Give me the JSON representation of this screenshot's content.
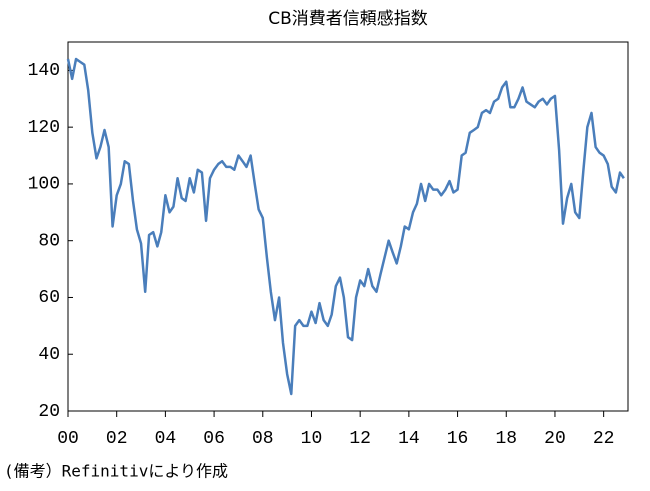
{
  "chart_data": {
    "type": "line",
    "title": "CB消費者信頼感指数",
    "note": "(備考）Refinitivにより作成",
    "color": "#4a7ebb",
    "x": [
      2000,
      2000.17,
      2000.33,
      2000.5,
      2000.67,
      2000.83,
      2001,
      2001.17,
      2001.33,
      2001.5,
      2001.67,
      2001.83,
      2002,
      2002.17,
      2002.33,
      2002.5,
      2002.67,
      2002.83,
      2003,
      2003.17,
      2003.33,
      2003.5,
      2003.67,
      2003.83,
      2004,
      2004.17,
      2004.33,
      2004.5,
      2004.67,
      2004.83,
      2005,
      2005.17,
      2005.33,
      2005.5,
      2005.67,
      2005.83,
      2006,
      2006.17,
      2006.33,
      2006.5,
      2006.67,
      2006.83,
      2007,
      2007.17,
      2007.33,
      2007.5,
      2007.67,
      2007.83,
      2008,
      2008.17,
      2008.33,
      2008.5,
      2008.67,
      2008.83,
      2009,
      2009.17,
      2009.33,
      2009.5,
      2009.67,
      2009.83,
      2010,
      2010.17,
      2010.33,
      2010.5,
      2010.67,
      2010.83,
      2011,
      2011.17,
      2011.33,
      2011.5,
      2011.67,
      2011.83,
      2012,
      2012.17,
      2012.33,
      2012.5,
      2012.67,
      2012.83,
      2013,
      2013.17,
      2013.33,
      2013.5,
      2013.67,
      2013.83,
      2014,
      2014.17,
      2014.33,
      2014.5,
      2014.67,
      2014.83,
      2015,
      2015.17,
      2015.33,
      2015.5,
      2015.67,
      2015.83,
      2016,
      2016.17,
      2016.33,
      2016.5,
      2016.67,
      2016.83,
      2017,
      2017.17,
      2017.33,
      2017.5,
      2017.67,
      2017.83,
      2018,
      2018.17,
      2018.33,
      2018.5,
      2018.67,
      2018.83,
      2019,
      2019.17,
      2019.33,
      2019.5,
      2019.67,
      2019.83,
      2020,
      2020.17,
      2020.33,
      2020.5,
      2020.67,
      2020.83,
      2021,
      2021.17,
      2021.33,
      2021.5,
      2021.67,
      2021.83,
      2022,
      2022.17,
      2022.33,
      2022.5,
      2022.67,
      2022.83
    ],
    "values": [
      144,
      137,
      144,
      143,
      142,
      133,
      118,
      109,
      113,
      119,
      113,
      85,
      96,
      100,
      108,
      107,
      94,
      84,
      79,
      62,
      82,
      83,
      78,
      83,
      96,
      90,
      92,
      102,
      95,
      94,
      102,
      97,
      105,
      104,
      87,
      102,
      105,
      107,
      108,
      106,
      106,
      105,
      110,
      108,
      106,
      110,
      100,
      91,
      88,
      74,
      62,
      52,
      60,
      44,
      33,
      26,
      50,
      52,
      50,
      50,
      55,
      51,
      58,
      52,
      50,
      54,
      64,
      67,
      60,
      46,
      45,
      60,
      66,
      64,
      70,
      64,
      62,
      68,
      74,
      80,
      76,
      72,
      78,
      85,
      84,
      90,
      93,
      100,
      94,
      100,
      98,
      98,
      96,
      98,
      101,
      97,
      98,
      110,
      111,
      118,
      119,
      120,
      125,
      126,
      125,
      129,
      130,
      134,
      136,
      127,
      127,
      130,
      134,
      129,
      128,
      127,
      129,
      130,
      128,
      130,
      131,
      112,
      86,
      95,
      100,
      90,
      88,
      105,
      120,
      125,
      113,
      111,
      110,
      107,
      99,
      97,
      104,
      102
    ],
    "xlim": [
      2000,
      2023
    ],
    "ylim": [
      20,
      150
    ],
    "xticks": [
      {
        "value": 2000,
        "label": "00"
      },
      {
        "value": 2002,
        "label": "02"
      },
      {
        "value": 2004,
        "label": "04"
      },
      {
        "value": 2006,
        "label": "06"
      },
      {
        "value": 2008,
        "label": "08"
      },
      {
        "value": 2010,
        "label": "10"
      },
      {
        "value": 2012,
        "label": "12"
      },
      {
        "value": 2014,
        "label": "14"
      },
      {
        "value": 2016,
        "label": "16"
      },
      {
        "value": 2018,
        "label": "18"
      },
      {
        "value": 2020,
        "label": "20"
      },
      {
        "value": 2022,
        "label": "22"
      }
    ],
    "yticks": [
      20,
      40,
      60,
      80,
      100,
      120,
      140
    ],
    "grid": false
  }
}
